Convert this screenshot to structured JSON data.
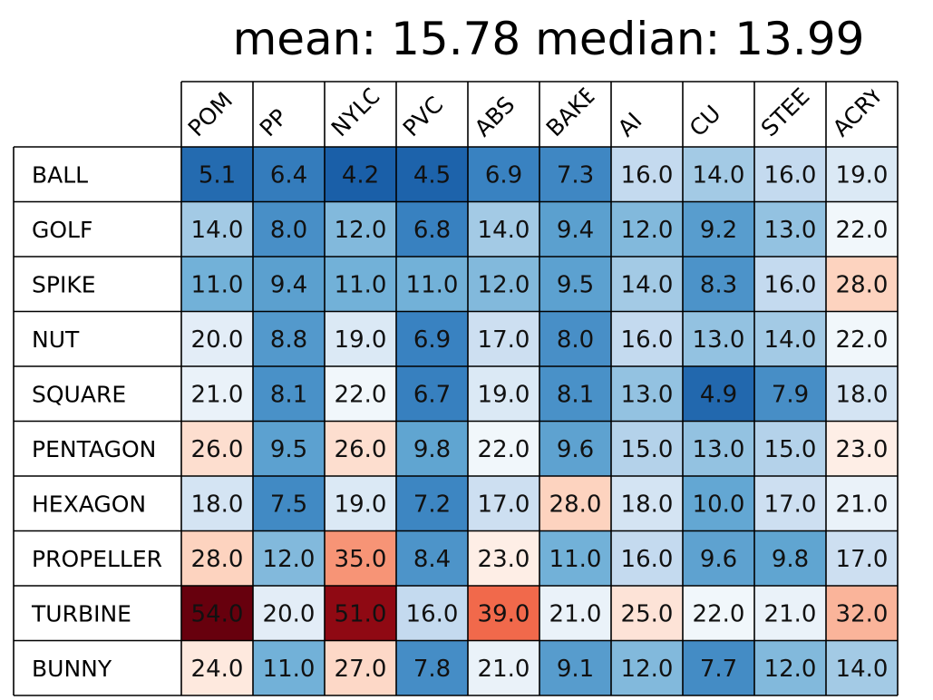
{
  "title": "mean: 15.78 median: 13.99",
  "chart_data": {
    "type": "heatmap",
    "title": "mean: 15.78 median: 13.99",
    "columns": [
      "POM",
      "PP",
      "NYLON",
      "PVC",
      "ABS",
      "BAKELITE",
      "AI",
      "CU",
      "STEEL",
      "ACRYLIC"
    ],
    "rows": [
      "BALL",
      "GOLF",
      "SPIKE",
      "NUT",
      "SQUARE",
      "PENTAGON",
      "HEXAGON",
      "PROPELLER",
      "TURBINE",
      "BUNNY"
    ],
    "values": [
      [
        "5.1",
        "6.4",
        "4.2",
        "4.5",
        "6.9",
        "7.3",
        "16.0",
        "14.0",
        "16.0",
        "19.0"
      ],
      [
        "14.0",
        "8.0",
        "12.0",
        "6.8",
        "14.0",
        "9.4",
        "12.0",
        "9.2",
        "13.0",
        "22.0"
      ],
      [
        "11.0",
        "9.4",
        "11.0",
        "11.0",
        "12.0",
        "9.5",
        "14.0",
        "8.3",
        "16.0",
        "28.0"
      ],
      [
        "20.0",
        "8.8",
        "19.0",
        "6.9",
        "17.0",
        "8.0",
        "16.0",
        "13.0",
        "14.0",
        "22.0"
      ],
      [
        "21.0",
        "8.1",
        "22.0",
        "6.7",
        "19.0",
        "8.1",
        "13.0",
        "4.9",
        "7.9",
        "18.0"
      ],
      [
        "26.0",
        "9.5",
        "26.0",
        "9.8",
        "22.0",
        "9.6",
        "15.0",
        "13.0",
        "15.0",
        "23.0"
      ],
      [
        "18.0",
        "7.5",
        "19.0",
        "7.2",
        "17.0",
        "28.0",
        "18.0",
        "10.0",
        "17.0",
        "21.0"
      ],
      [
        "28.0",
        "12.0",
        "35.0",
        "8.4",
        "23.0",
        "11.0",
        "16.0",
        "9.6",
        "9.8",
        "17.0"
      ],
      [
        "54.0",
        "20.0",
        "51.0",
        "16.0",
        "39.0",
        "21.0",
        "25.0",
        "22.0",
        "21.0",
        "32.0"
      ],
      [
        "24.0",
        "11.0",
        "27.0",
        "7.8",
        "21.0",
        "9.1",
        "12.0",
        "7.7",
        "12.0",
        "14.0"
      ]
    ],
    "colormap": "RdBu_r",
    "color_center": 22.5,
    "color_range": [
      4.2,
      54.0
    ],
    "colors": {
      "deep_blue": "#1a5fa8",
      "light": "#f5f9fc",
      "deep_red": "#67000d"
    },
    "grid": true,
    "legend": "none"
  }
}
